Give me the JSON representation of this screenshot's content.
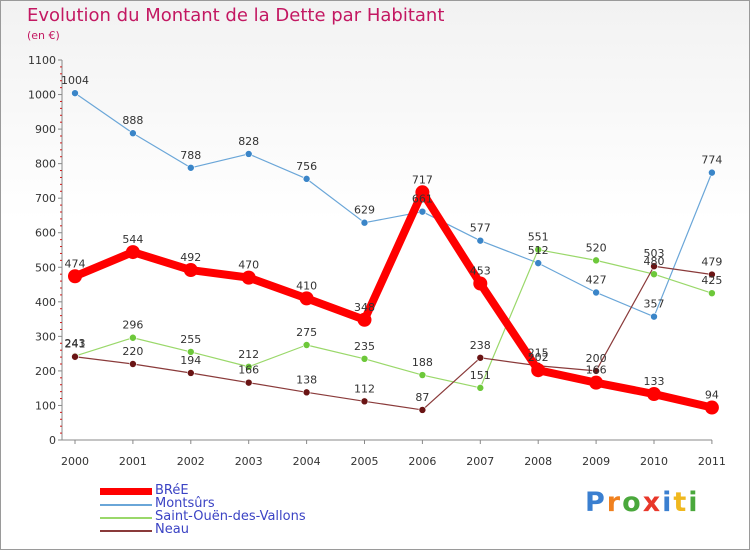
{
  "title": "Evolution du Montant de la Dette par Habitant",
  "subtitle": "(en €)",
  "logo": {
    "text": "Proxiti",
    "colors": [
      "#3a7fd0",
      "#f0801e",
      "#4aa83c",
      "#e8372a",
      "#3a7fd0",
      "#f0b81e",
      "#4aa83c"
    ]
  },
  "chart_data": {
    "type": "line",
    "x": [
      "2000",
      "2001",
      "2002",
      "2003",
      "2004",
      "2005",
      "2006",
      "2007",
      "2008",
      "2009",
      "2010",
      "2011"
    ],
    "ylim": [
      0,
      1100
    ],
    "yticks": [
      0,
      100,
      200,
      300,
      400,
      500,
      600,
      700,
      800,
      900,
      1000,
      1100
    ],
    "grid": false,
    "legend_position": "bottom-left",
    "series": [
      {
        "name": "BRéE",
        "color": "#ff0000",
        "marker": "#ff0000",
        "width": 8,
        "radius": 7,
        "values": [
          474,
          544,
          492,
          470,
          410,
          348,
          717,
          453,
          202,
          166,
          133,
          94
        ]
      },
      {
        "name": "Montsûrs",
        "color": "#6aa6d8",
        "marker": "#3a85c8",
        "width": 1.2,
        "radius": 3.5,
        "values": [
          1004,
          888,
          788,
          828,
          756,
          629,
          661,
          577,
          512,
          427,
          357,
          774
        ]
      },
      {
        "name": "Saint-Ouën-des-Vallons",
        "color": "#9ad86a",
        "marker": "#6dc83a",
        "width": 1.2,
        "radius": 3.5,
        "values": [
          243,
          296,
          255,
          212,
          275,
          235,
          188,
          151,
          551,
          520,
          480,
          425
        ]
      },
      {
        "name": "Neau",
        "color": "#8a3a3a",
        "marker": "#6a1414",
        "width": 1.2,
        "radius": 3.5,
        "values": [
          241,
          220,
          194,
          166,
          138,
          112,
          87,
          238,
          215,
          200,
          503,
          479
        ]
      }
    ],
    "labels": [
      {
        "series": 0,
        "text": [
          "474",
          "544",
          "492",
          "470",
          "410",
          "348",
          "717",
          "453",
          "202",
          "166",
          "133",
          "94"
        ]
      },
      {
        "series": 1,
        "text": [
          "1004",
          "888",
          "788",
          "828",
          "756",
          "629",
          "661",
          "577",
          "512",
          "427",
          "357",
          "774"
        ]
      },
      {
        "series": 2,
        "text": [
          "243",
          "296",
          "255",
          "212",
          "275",
          "235",
          "188",
          "151",
          "551",
          "520",
          "480",
          "425"
        ]
      },
      {
        "series": 3,
        "text": [
          "241",
          "220",
          "194",
          "166",
          "138",
          "112",
          "87",
          "238",
          "215",
          "200",
          "503",
          "479"
        ]
      }
    ]
  }
}
